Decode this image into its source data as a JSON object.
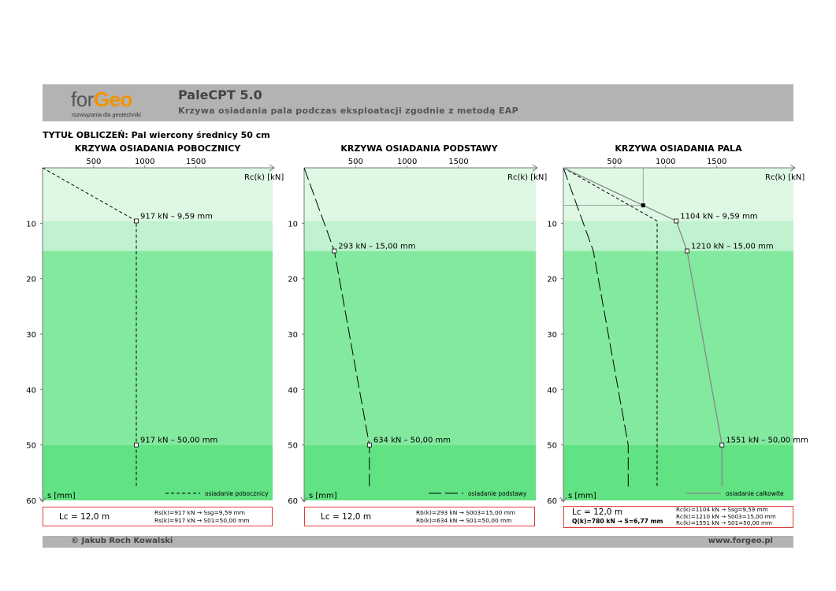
{
  "header": {
    "logo_for": "for",
    "logo_geo": "Geo",
    "logo_tagline": "rozwiązania dla geotechniki",
    "app_title": "PaleCPT 5.0",
    "app_subtitle": "Krzywa osiadania pala podczas eksploatacji zgodnie z metodą EAP"
  },
  "calc_title": "TYTUŁ OBLICZEŃ: Pal wiercony średnicy 50 cm",
  "colors": {
    "zone_light": "#dff8e4",
    "zone_mid": "#c1f2cf",
    "zone_main": "#83e99e",
    "zone_bottom": "#61e283",
    "box_border": "#e03c3c",
    "total_line": "#888888",
    "header_bg": "#b3b3b3",
    "logo_orange": "#f39200"
  },
  "chart_data": [
    {
      "type": "line",
      "title": "KRZYWA OSIADANIA POBOCZNICY",
      "xlabel": "Rc(k) [kN]",
      "ylabel": "s [mm]",
      "xticks": [
        500,
        1000,
        1500
      ],
      "yticks": [
        10,
        20,
        30,
        40,
        50,
        60
      ],
      "xlim": [
        0,
        2250
      ],
      "ylim": [
        0,
        60
      ],
      "series": [
        {
          "name": "osiadanie pobocznicy",
          "style": "dashed",
          "x": [
            0,
            917,
            917,
            917
          ],
          "y": [
            0,
            9.59,
            50,
            57.5
          ]
        }
      ],
      "annotations": [
        {
          "x": 917,
          "y": 9.59,
          "text": "917 kN – 9,59 mm"
        },
        {
          "x": 917,
          "y": 50,
          "text": "917 kN – 50,00 mm"
        }
      ]
    },
    {
      "type": "line",
      "title": "KRZYWA OSIADANIA PODSTAWY",
      "xlabel": "Rc(k) [kN]",
      "ylabel": "s [mm]",
      "xticks": [
        500,
        1000,
        1500
      ],
      "yticks": [
        10,
        20,
        30,
        40,
        50,
        60
      ],
      "xlim": [
        0,
        2250
      ],
      "ylim": [
        0,
        60
      ],
      "series": [
        {
          "name": "osiadanie podstawy",
          "style": "longdash",
          "x": [
            0,
            293,
            634,
            634
          ],
          "y": [
            0,
            15,
            50,
            57.5
          ]
        }
      ],
      "annotations": [
        {
          "x": 293,
          "y": 15,
          "text": "293 kN – 15,00 mm"
        },
        {
          "x": 634,
          "y": 50,
          "text": "634 kN – 50,00 mm"
        }
      ]
    },
    {
      "type": "line",
      "title": "KRZYWA OSIADANIA PALA",
      "xlabel": "Rc(k) [kN]",
      "ylabel": "s [mm]",
      "xticks": [
        500,
        1000,
        1500
      ],
      "yticks": [
        10,
        20,
        30,
        40,
        50,
        60
      ],
      "xlim": [
        0,
        2250
      ],
      "ylim": [
        0,
        60
      ],
      "series": [
        {
          "name": "",
          "style": "dashed",
          "x": [
            0,
            917,
            917,
            917
          ],
          "y": [
            0,
            9.59,
            50,
            57.5
          ]
        },
        {
          "name": "",
          "style": "longdash",
          "x": [
            0,
            293,
            634,
            634
          ],
          "y": [
            0,
            15,
            50,
            57.5
          ]
        },
        {
          "name": "osiadanie całkowite",
          "style": "solid-gray",
          "x": [
            0,
            1104,
            1210,
            1551,
            1551
          ],
          "y": [
            0,
            9.59,
            15,
            50,
            57.5
          ]
        }
      ],
      "annotations": [
        {
          "x": 1104,
          "y": 9.59,
          "text": "1104 kN – 9,59 mm"
        },
        {
          "x": 1210,
          "y": 15,
          "text": "1210 kN – 15,00 mm"
        },
        {
          "x": 1551,
          "y": 50,
          "text": "1551 kN – 50,00 mm"
        }
      ],
      "operating_point": {
        "x": 780,
        "y": 6.77
      }
    }
  ],
  "boxes": [
    {
      "lc": "Lc = 12,0 m",
      "lines": [
        "Rs(k)=917 kN  →  Ssg=9,59 mm",
        "Rs(k)=917 kN  →  S01=50,00 mm"
      ]
    },
    {
      "lc": "Lc = 12,0 m",
      "lines": [
        "Rb(k)=293 kN  →  S003=15,00 mm",
        "Rb(k)=634 kN  →  S01=50,00 mm"
      ]
    },
    {
      "lc": "Lc = 12,0 m",
      "qk": "Q(k)=780 kN  →  S=6,77 mm",
      "lines": [
        "Rc(k)=1104 kN  →  Ssg=9,59 mm",
        "Rc(k)=1210 kN  →  S003=15,00 mm",
        "Rc(k)=1551 kN  →  S01=50,00 mm"
      ]
    }
  ],
  "footer": {
    "left": "© Jakub Roch Kowalski",
    "right": "www.forgeo.pl"
  }
}
